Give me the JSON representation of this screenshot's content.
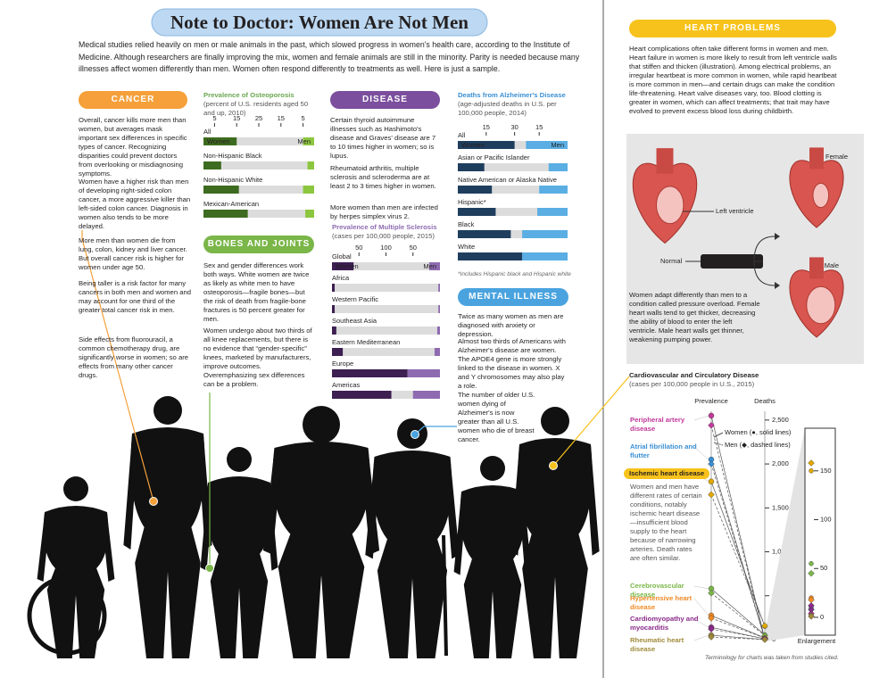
{
  "header": {
    "title": "Note to Doctor: Women Are Not Men",
    "intro": "Medical studies relied heavily on men or male animals in the past, which slowed progress in women's health care, according to the Institute of Medicine. Although researchers are finally improving the mix, women and female animals are still in the minority. Parity is needed because many illnesses affect women differently than men. Women often respond differently to treatments as well. Here is just a sample."
  },
  "cancer": {
    "heading": "CANCER",
    "paragraphs": [
      "Overall, cancer kills more men than women, but averages mask important sex differences in specific types of cancer. Recognizing disparities could prevent doctors from overlooking or misdiagnosing symptoms.",
      "Women have a higher risk than men of developing right-sided colon cancer, a more aggressive killer than left-sided colon cancer. Diagnosis in women also tends to be more delayed.",
      "More men than women die from lung, colon, kidney and liver cancer. But overall cancer risk is higher for women under age 50.",
      "Being taller is a risk factor for many cancers in both men and women and may account for one third of the greater total cancer risk in men.",
      "Side effects from fluorouracil, a common chemotherapy drug, are significantly worse in women; so are effects from many other cancer drugs."
    ]
  },
  "osteoporosis": {
    "title": "Prevalence of Osteoporosis",
    "subtitle": "(percent of U.S. residents aged 50 and up, 2010)",
    "women_label": "Women",
    "men_label": "Men",
    "women_ticks": [
      5,
      15,
      25
    ],
    "men_ticks": [
      15,
      5
    ],
    "women_lim": [
      0,
      50
    ],
    "men_lim": [
      0,
      50
    ],
    "rows": [
      {
        "label": "All",
        "women": 15,
        "men": 5
      },
      {
        "label": "Non-Hispanic Black",
        "women": 8,
        "men": 3
      },
      {
        "label": "Non-Hispanic White",
        "women": 16,
        "men": 5
      },
      {
        "label": "Mexican-American",
        "women": 20,
        "men": 4
      }
    ]
  },
  "bones": {
    "heading": "BONES AND JOINTS",
    "paragraphs": [
      "Sex and gender differences work both ways. White women are twice as likely as white men to have osteoporosis—fragile bones—but the risk of death from fragile-bone fractures is 50 percent greater for men.",
      "Women undergo about two thirds of all knee replacements, but there is no evidence that “gender-specific” knees, marketed by manufacturers, improve outcomes. Overemphasizing sex differences can be a problem."
    ]
  },
  "disease": {
    "heading": "DISEASE",
    "paragraphs": [
      "Certain thyroid autoimmune illnesses such as Hashimoto's disease and Graves' disease are 7 to 10 times higher in women; so is lupus.",
      "Rheumatoid arthritis, multiple sclerosis and scleroderma are at least 2 to 3 times higher in women.",
      "More women than men are infected by herpes simplex virus 2."
    ]
  },
  "multiple_sclerosis": {
    "title": "Prevalence of Multiple Sclerosis",
    "subtitle": "(cases per 100,000 people, 2015)",
    "women_label": "Women",
    "men_label": "Men",
    "women_ticks": [
      50,
      100
    ],
    "men_ticks": [
      50
    ],
    "women_lim": [
      0,
      200
    ],
    "men_lim": [
      0,
      200
    ],
    "rows": [
      {
        "label": "Global",
        "women": 40,
        "men": 20
      },
      {
        "label": "Africa",
        "women": 5,
        "men": 3
      },
      {
        "label": "Western Pacific",
        "women": 5,
        "men": 3
      },
      {
        "label": "Southeast Asia",
        "women": 8,
        "men": 5
      },
      {
        "label": "Eastern Mediterranean",
        "women": 20,
        "men": 10
      },
      {
        "label": "Europe",
        "women": 140,
        "men": 60
      },
      {
        "label": "Americas",
        "women": 110,
        "men": 50
      }
    ]
  },
  "alzheimers": {
    "title": "Deaths from Alzheimer's Disease",
    "subtitle": "(age-adjusted deaths in U.S. per 100,000 people, 2014)",
    "women_label": "Women",
    "men_label": "Men",
    "women_ticks": [
      15,
      30
    ],
    "men_ticks": [
      15
    ],
    "women_lim": [
      0,
      58
    ],
    "men_lim": [
      0,
      58
    ],
    "rows": [
      {
        "label": "All",
        "women": 30,
        "men": 22
      },
      {
        "label": "Asian or Pacific Islander",
        "women": 14,
        "men": 10
      },
      {
        "label": "Native American or Alaska Native",
        "women": 18,
        "men": 15
      },
      {
        "label": "Hispanic*",
        "women": 20,
        "men": 16
      },
      {
        "label": "Black",
        "women": 28,
        "men": 24
      },
      {
        "label": "White",
        "women": 34,
        "men": 24
      }
    ],
    "footnote": "*Includes Hispanic black and Hispanic white"
  },
  "mental_illness": {
    "heading": "MENTAL ILLNESS",
    "paragraphs": [
      "Twice as many women as men are diagnosed with anxiety or depression.",
      "Almost two thirds of Americans with Alzheimer's disease are women. The APOE4 gene is more strongly linked to the disease in women. X and Y chromosomes may also play a role.",
      "The number of older U.S. women dying of Alzheimer's is now greater than all U.S. women who die of breast cancer."
    ]
  },
  "heart": {
    "heading": "HEART PROBLEMS",
    "text": "Heart complications often take different forms in women and men. Heart failure in women is more likely to result from left ventricle walls that stiffen and thicken (illustration). Among electrical problems, an irregular heartbeat is more common in women, while rapid heartbeat is more common in men—and certain drugs can make the condition life-threatening. Heart valve diseases vary, too. Blood clotting is greater in women, which can affect treatments; that trait may have evolved to prevent excess blood loss during childbirth.",
    "illustration": {
      "female": "Female",
      "male": "Male",
      "left_ventricle": "Left ventricle",
      "normal": "Normal",
      "pressure_overload": "Pressure overload",
      "caption": "Women adapt differently than men to a condition called pressure overload. Female heart walls tend to get thicker, decreasing the ability of blood to enter the left ventricle. Male heart walls get thinner, weakening pumping power."
    }
  },
  "cardiovascular": {
    "title": "Cardiovascular and Circulatory Disease",
    "subtitle": "(cases per 100,000 people in U.S., 2015)",
    "prevalence_label": "Prevalence",
    "deaths_label": "Deaths",
    "women_legend": "Women (●, solid lines)",
    "men_legend": "Men (◆, dashed lines)",
    "ylim": [
      0,
      2600
    ],
    "yticks": [
      0,
      500,
      {
        "value": 1000,
        "label": "1,000"
      },
      {
        "value": 1500,
        "label": "1,500"
      },
      {
        "value": 2000,
        "label": "2,000"
      },
      {
        "value": 2500,
        "label": "2,500"
      }
    ],
    "enlargement": {
      "label": "Enlargement",
      "ylim": [
        0,
        190
      ],
      "yticks": [
        0,
        50,
        100,
        150
      ]
    },
    "note": "Women and men have different rates of certain conditions, notably ischemic heart disease—insufficient blood supply to the heart because of narrowing arteries. Death rates are often similar.",
    "diseases": [
      {
        "label": "Peripheral artery disease",
        "color": "#c2389a",
        "prevalence": {
          "women": 2550,
          "men": 2440
        },
        "deaths": {
          "women": 3,
          "men": 4
        }
      },
      {
        "label": "Atrial fibrillation and flutter",
        "color": "#3a8fd3",
        "prevalence": {
          "women": 2050,
          "men": 2000
        },
        "deaths": {
          "women": 10,
          "men": 8
        }
      },
      {
        "label": "Ischemic heart disease",
        "color": "#e0a800",
        "prevalence": {
          "women": 1800,
          "men": 1650
        },
        "deaths": {
          "women": 150,
          "men": 158
        }
      },
      {
        "label": "Cerebrovascular disease",
        "color": "#7ab648",
        "prevalence": {
          "women": 580,
          "men": 530
        },
        "deaths": {
          "women": 55,
          "men": 45
        }
      },
      {
        "label": "Hypertensive heart disease",
        "color": "#f08a24",
        "prevalence": {
          "women": 275,
          "men": 245
        },
        "deaths": {
          "women": 20,
          "men": 18
        }
      },
      {
        "label": "Cardiomyopathy and myocarditis",
        "color": "#8a2a8a",
        "prevalence": {
          "women": 140,
          "men": 120
        },
        "deaths": {
          "women": 8,
          "men": 12
        }
      },
      {
        "label": "Rheumatic heart disease",
        "color": "#a08a3a",
        "prevalence": {
          "women": 50,
          "men": 30
        },
        "deaths": {
          "women": 2,
          "men": 1
        }
      }
    ]
  },
  "footnote": "Terminology for charts was taken from studies cited."
}
